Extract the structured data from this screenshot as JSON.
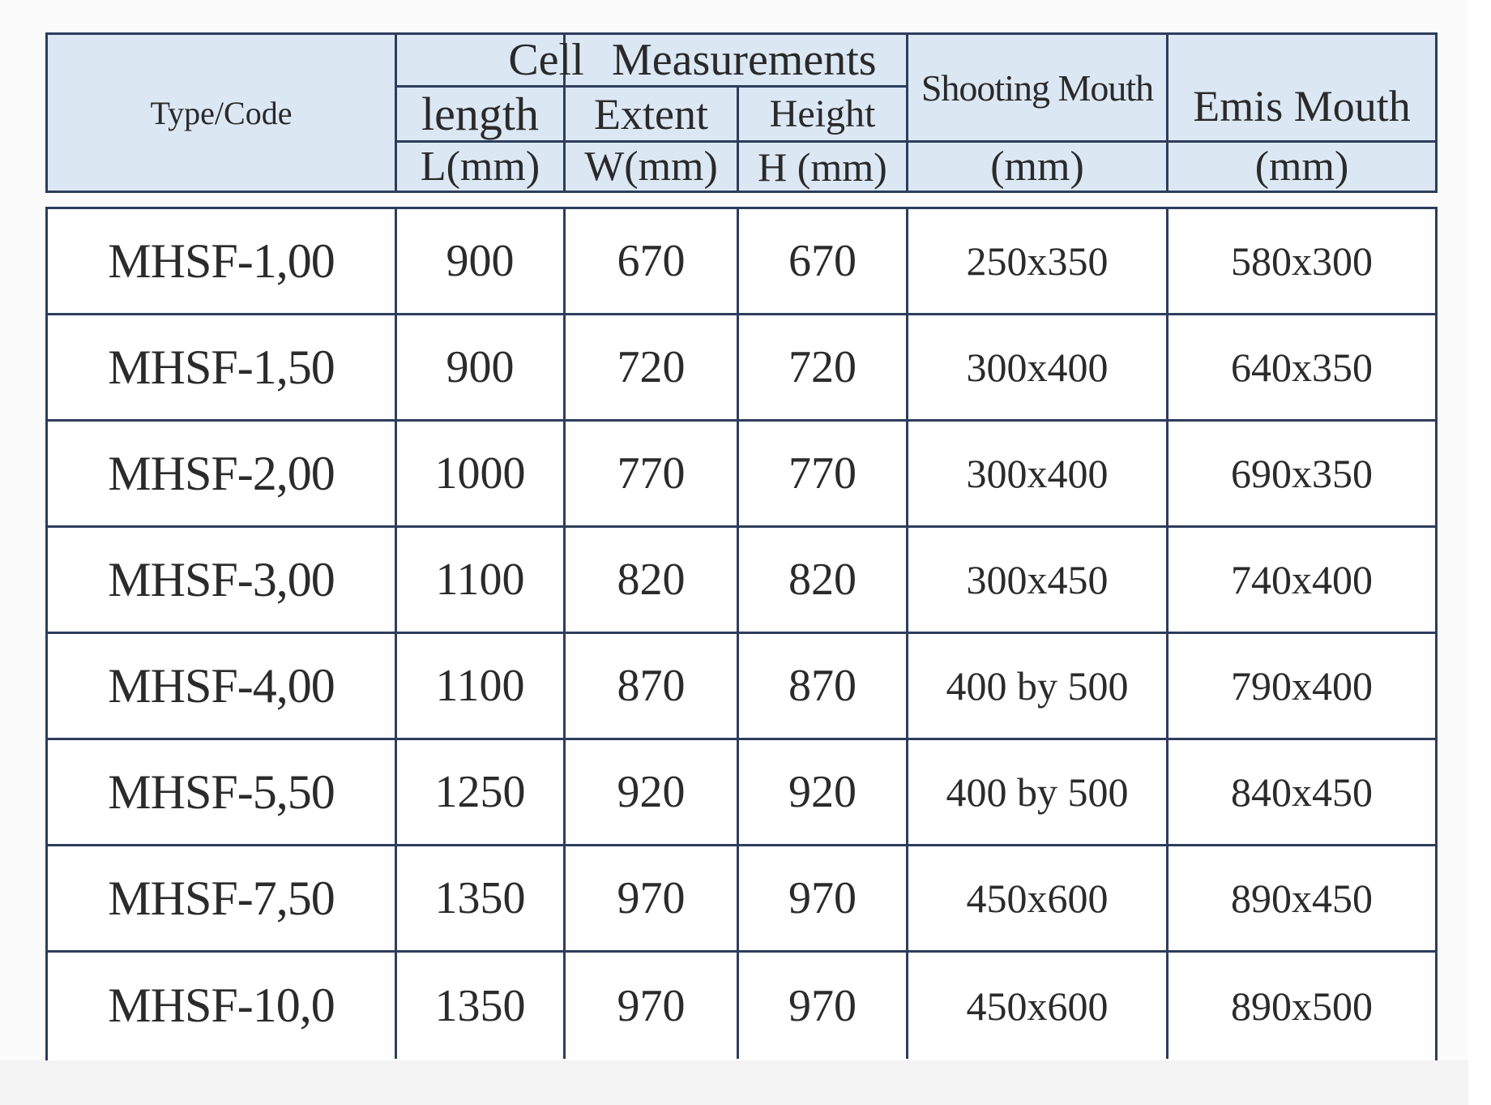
{
  "header": {
    "type_code": "Type/Code",
    "cell_label": "Cell",
    "measurements_label": "Measurements",
    "length_label": "length",
    "extent_label": "Extent",
    "height_label": "Height",
    "length_unit": "L(mm)",
    "extent_unit": "W(mm)",
    "height_unit": "H (mm)",
    "shooting_mouth": "Shooting Mouth",
    "shooting_unit": "(mm)",
    "emis_mouth": "Emis Mouth",
    "emis_unit": "(mm)"
  },
  "rows": [
    {
      "code": "MHSF-1,00",
      "length": "900",
      "extent": "670",
      "height": "670",
      "shooting": "250x350",
      "emis": "580x300"
    },
    {
      "code": "MHSF-1,50",
      "length": "900",
      "extent": "720",
      "height": "720",
      "shooting": "300x400",
      "emis": "640x350"
    },
    {
      "code": "MHSF-2,00",
      "length": "1000",
      "extent": "770",
      "height": "770",
      "shooting": "300x400",
      "emis": "690x350"
    },
    {
      "code": "MHSF-3,00",
      "length": "1100",
      "extent": "820",
      "height": "820",
      "shooting": "300x450",
      "emis": "740x400"
    },
    {
      "code": "MHSF-4,00",
      "length": "1100",
      "extent": "870",
      "height": "870",
      "shooting": "400 by 500",
      "emis": "790x400"
    },
    {
      "code": "MHSF-5,50",
      "length": "1250",
      "extent": "920",
      "height": "920",
      "shooting": "400 by 500",
      "emis": "840x450"
    },
    {
      "code": "MHSF-7,50",
      "length": "1350",
      "extent": "970",
      "height": "970",
      "shooting": "450x600",
      "emis": "890x450"
    },
    {
      "code": "MHSF-10,0",
      "length": "1350",
      "extent": "970",
      "height": "970",
      "shooting": "450x600",
      "emis": "890x500"
    }
  ],
  "colors": {
    "header_fill": "#dbe7f3",
    "grid_line": "#2d3d5c"
  }
}
